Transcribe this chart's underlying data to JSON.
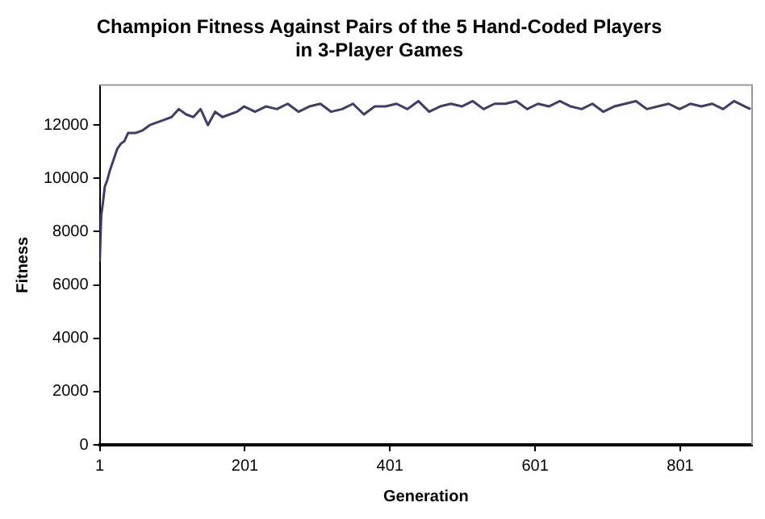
{
  "chart_data": {
    "type": "line",
    "title": "Champion Fitness Against Pairs of the 5 Hand-Coded Players\nin 3-Player Games",
    "xlabel": "Generation",
    "ylabel": "Fitness",
    "x": [
      1,
      3,
      5,
      8,
      11,
      15,
      20,
      25,
      30,
      35,
      40,
      50,
      60,
      70,
      80,
      90,
      100,
      110,
      120,
      130,
      140,
      150,
      160,
      170,
      180,
      190,
      200,
      215,
      230,
      245,
      260,
      275,
      290,
      305,
      320,
      335,
      350,
      365,
      380,
      395,
      410,
      425,
      440,
      455,
      470,
      485,
      500,
      515,
      530,
      545,
      560,
      575,
      590,
      605,
      620,
      635,
      650,
      665,
      680,
      695,
      710,
      725,
      740,
      755,
      770,
      785,
      800,
      815,
      830,
      845,
      860,
      875,
      890,
      898
    ],
    "series": [
      {
        "color": "#3f3d6e",
        "values": [
          6900,
          8600,
          9000,
          9700,
          9900,
          10300,
          10700,
          11100,
          11300,
          11400,
          11700,
          11700,
          11800,
          12000,
          12100,
          12200,
          12300,
          12600,
          12400,
          12300,
          12600,
          12000,
          12500,
          12300,
          12400,
          12500,
          12700,
          12500,
          12700,
          12600,
          12800,
          12500,
          12700,
          12800,
          12500,
          12600,
          12800,
          12400,
          12700,
          12700,
          12800,
          12600,
          12900,
          12500,
          12700,
          12800,
          12700,
          12900,
          12600,
          12800,
          12800,
          12900,
          12600,
          12800,
          12700,
          12900,
          12700,
          12600,
          12800,
          12500,
          12700,
          12800,
          12900,
          12600,
          12700,
          12800,
          12600,
          12800,
          12700,
          12800,
          12600,
          12900,
          12700,
          12600
        ]
      }
    ],
    "xlim": [
      1,
      900
    ],
    "xticks": [
      1,
      201,
      401,
      601,
      801
    ],
    "ylim": [
      0,
      13500
    ],
    "yticks": [
      0,
      2000,
      4000,
      6000,
      8000,
      10000,
      12000
    ],
    "grid": false,
    "legend": false,
    "marker": "none",
    "line_style": "solid"
  }
}
